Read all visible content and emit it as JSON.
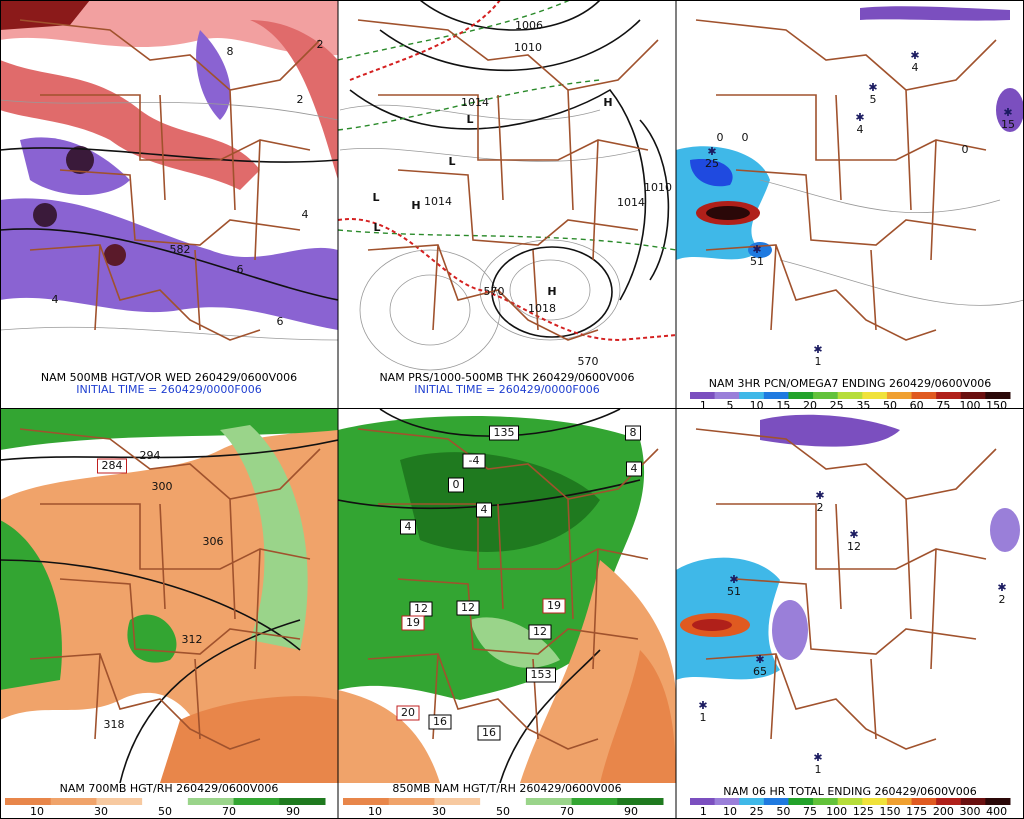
{
  "panels": [
    {
      "caption": "NAM 500MB HGT/VOR WED 260429/0600V006",
      "initial_time": "INITIAL TIME = 260429/0000F006",
      "map_labels": [
        "582",
        "6",
        "4",
        "8",
        "2",
        "6",
        "4",
        "2"
      ]
    },
    {
      "caption": "NAM PRS/1000-500MB THK 260429/0600V006",
      "initial_time": "INITIAL TIME = 260429/0000F006",
      "map_labels": [
        "1006",
        "1010",
        "1014",
        "1014",
        "1018",
        "1010",
        "1014",
        "L",
        "L",
        "L",
        "L",
        "H",
        "H",
        "H",
        "570",
        "570"
      ]
    },
    {
      "caption": "NAM 3HR PCN/OMEGA7 ENDING 260429/0600V006",
      "map_labels": [
        "4",
        "5",
        "4",
        "15",
        "25",
        "51",
        "1",
        "0",
        "0",
        "0"
      ],
      "colorbar": {
        "labels": [
          1,
          5,
          10,
          15,
          20,
          25,
          35,
          50,
          60,
          75,
          100,
          150
        ],
        "colors": [
          "#7b4fbf",
          "#9a7fd9",
          "#3fb8e8",
          "#1f7ae0",
          "#22a22a",
          "#62c23a",
          "#b6dd3a",
          "#f0e23a",
          "#f0a030",
          "#e05a20",
          "#b0201a",
          "#6a1010",
          "#2a0808"
        ]
      }
    },
    {
      "caption": "NAM 700MB HGT/RH 260429/0600V006",
      "map_labels": [
        "284",
        "294",
        "300",
        "306",
        "312",
        "318"
      ],
      "colorbar": {
        "labels": [
          10,
          30,
          50,
          70,
          90
        ],
        "colors": [
          "#e8864a",
          "#f0a36a",
          "#f7c9a0",
          "#ffffff",
          "#9ad48a",
          "#33a532",
          "#1f7a1f"
        ]
      }
    },
    {
      "caption": "850MB NAM HGT/T/RH 260429/0600V006",
      "map_labels": [
        "8",
        "4",
        "0",
        "-4",
        "4",
        "4",
        "12",
        "12",
        "12",
        "16",
        "16",
        "19",
        "19",
        "20",
        "135",
        "153"
      ],
      "colorbar": {
        "labels": [
          10,
          30,
          50,
          70,
          90
        ],
        "colors": [
          "#e8864a",
          "#f0a36a",
          "#f7c9a0",
          "#ffffff",
          "#9ad48a",
          "#33a532",
          "#1f7a1f"
        ]
      }
    },
    {
      "caption": "NAM 06 HR TOTAL ENDING 260429/0600V006",
      "map_labels": [
        "2",
        "12",
        "2",
        "51",
        "65",
        "1",
        "1"
      ],
      "colorbar": {
        "labels": [
          1,
          10,
          25,
          50,
          75,
          100,
          125,
          150,
          175,
          200,
          300,
          400
        ],
        "colors": [
          "#7b4fbf",
          "#9a7fd9",
          "#3fb8e8",
          "#1f7ae0",
          "#22a22a",
          "#62c23a",
          "#b6dd3a",
          "#f0e23a",
          "#f0a030",
          "#e05a20",
          "#b0201a",
          "#6a1010",
          "#2a0808"
        ]
      }
    }
  ]
}
